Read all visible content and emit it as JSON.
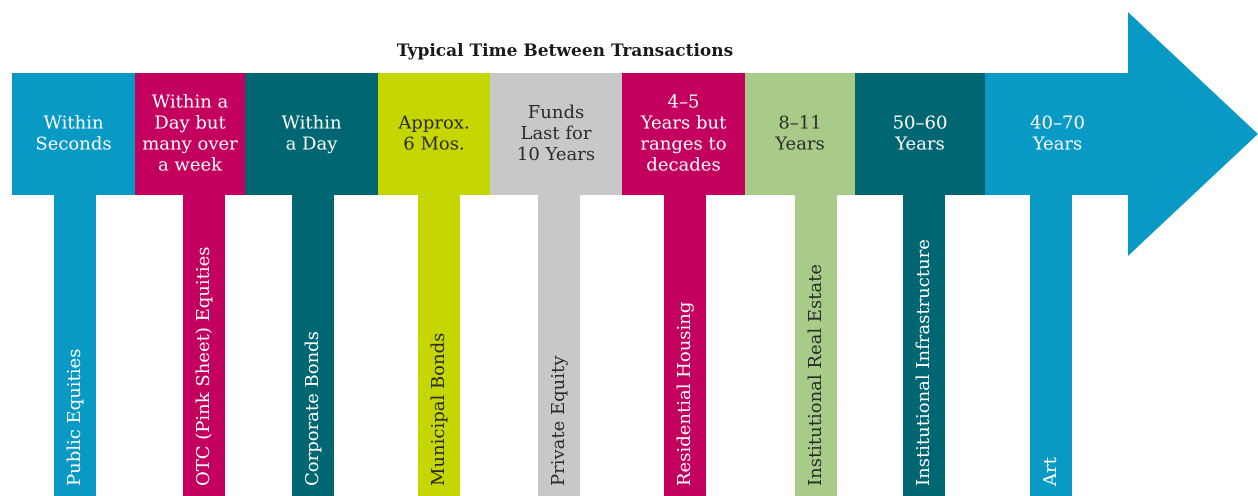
{
  "title": "Typical Time Between Transactions",
  "segments": [
    {
      "label": [
        "Within",
        "Seconds"
      ],
      "asset": "Public Equities",
      "color": "#0899c4",
      "text_color": "#ffffff"
    },
    {
      "label": [
        "Within a",
        "Day but",
        "many over",
        "a week"
      ],
      "asset": "OTC (Pink Sheet) Equities",
      "color": "#c4005e",
      "text_color": "#ffffff"
    },
    {
      "label": [
        "Within",
        "a Day"
      ],
      "asset": "Corporate Bonds",
      "color": "#006672",
      "text_color": "#ffffff"
    },
    {
      "label": [
        "Approx.",
        "6 Mos."
      ],
      "asset": "Municipal Bonds",
      "color": "#c6d600",
      "text_color": "#2a2a2a"
    },
    {
      "label": [
        "Funds",
        "Last for",
        "10 Years"
      ],
      "asset": "Private Equity",
      "color": "#c8c8c8",
      "text_color": "#2a2a2a"
    },
    {
      "label": [
        "4–5",
        "Years but",
        "ranges to",
        "decades"
      ],
      "asset": "Residential Housing",
      "color": "#c4005e",
      "text_color": "#ffffff"
    },
    {
      "label": [
        "8–11",
        "Years"
      ],
      "asset": "Institutional Real Estate",
      "color": "#a8cc88",
      "text_color": "#2a2a2a"
    },
    {
      "label": [
        "50–60",
        "Years"
      ],
      "asset": "Institutional Infrastructure",
      "color": "#006672",
      "text_color": "#ffffff"
    },
    {
      "label": [
        "40–70",
        "Years"
      ],
      "asset": "Art",
      "color": "#0899c4",
      "text_color": "#ffffff"
    }
  ]
}
